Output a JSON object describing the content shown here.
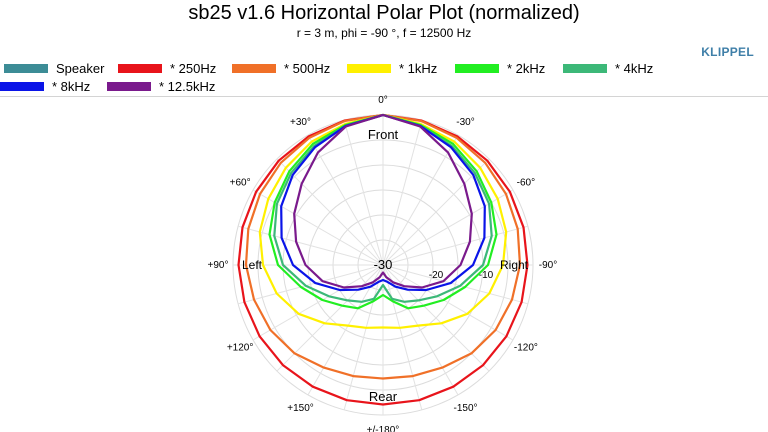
{
  "header": {
    "title": "sb25 v1.6 Horizontal Polar Plot (normalized)",
    "subtitle": "r = 3 m, phi = -90 °, f = 12500 Hz",
    "brand": "KLIPPEL"
  },
  "chart_data": {
    "type": "polar",
    "title": "sb25 v1.6 Horizontal Polar Plot (normalized)",
    "subtitle": "r = 3 m, phi = -90 °, f = 12500 Hz",
    "radial_range_db": [
      -30,
      0
    ],
    "radial_tick_labels": [
      "-30",
      "-20",
      "-10"
    ],
    "angle_tick_labels": [
      {
        "angle": 0,
        "label": "0°"
      },
      {
        "angle": 30,
        "label": "-30°"
      },
      {
        "angle": 60,
        "label": "-60°"
      },
      {
        "angle": 90,
        "label": "-90°"
      },
      {
        "angle": 120,
        "label": "-120°"
      },
      {
        "angle": 150,
        "label": "-150°"
      },
      {
        "angle": 180,
        "label": "+/-180°"
      },
      {
        "angle": 210,
        "label": "+150°"
      },
      {
        "angle": 240,
        "label": "+120°"
      },
      {
        "angle": 270,
        "label": "+90°"
      },
      {
        "angle": 300,
        "label": "+60°"
      },
      {
        "angle": 330,
        "label": "+30°"
      }
    ],
    "region_labels": {
      "front": "Front",
      "rear": "Rear",
      "left": "Left",
      "right": "Right"
    },
    "grid": true,
    "legend_position": "top",
    "angles_deg": [
      0,
      15,
      30,
      45,
      60,
      75,
      90,
      105,
      120,
      135,
      150,
      165,
      180
    ],
    "series": [
      {
        "name": "Speaker",
        "color": "#3c8c96",
        "in_plot": false,
        "values_db": []
      },
      {
        "name": "* 250Hz",
        "color": "#e8141b",
        "values_db": [
          0,
          -0.1,
          -0.3,
          -0.5,
          -0.7,
          -0.9,
          -1.1,
          -1.3,
          -1.5,
          -1.7,
          -1.9,
          -2.0,
          -2.1
        ]
      },
      {
        "name": "* 500Hz",
        "color": "#f07028",
        "values_db": [
          0,
          -0.2,
          -0.6,
          -1.1,
          -1.6,
          -2.1,
          -2.6,
          -3.3,
          -4.0,
          -5.0,
          -6.3,
          -7.0,
          -7.3
        ]
      },
      {
        "name": "* 1kHz",
        "color": "#fff000",
        "values_db": [
          0,
          -0.8,
          -1.5,
          -2.5,
          -3.5,
          -4.5,
          -6.0,
          -8.0,
          -10.5,
          -13.5,
          -16.0,
          -17.0,
          -17.5
        ]
      },
      {
        "name": "* 2kHz",
        "color": "#22ee22",
        "values_db": [
          0,
          -1.0,
          -2.0,
          -3.5,
          -5.0,
          -6.5,
          -9.0,
          -13.0,
          -16.0,
          -18.5,
          -20.0,
          -22.5,
          -24.0
        ]
      },
      {
        "name": "* 4kHz",
        "color": "#3cb878",
        "values_db": [
          0,
          -1.2,
          -2.5,
          -4.0,
          -5.5,
          -7.5,
          -10.0,
          -14.0,
          -17.5,
          -20.0,
          -21.5,
          -23.0,
          -26.0
        ]
      },
      {
        "name": "* 8kHz",
        "color": "#0a14e8",
        "values_db": [
          0,
          -1.2,
          -2.8,
          -4.5,
          -6.5,
          -9.0,
          -12.0,
          -16.0,
          -20.0,
          -23.0,
          -25.0,
          -26.5,
          -27.0
        ]
      },
      {
        "name": "* 12.5kHz",
        "color": "#7a1a8c",
        "values_db": [
          0,
          -1.3,
          -4.0,
          -7.0,
          -9.5,
          -12.0,
          -14.5,
          -17.5,
          -21.0,
          -24.0,
          -26.0,
          -27.5,
          -28.5
        ]
      }
    ]
  },
  "legend": {
    "items": [
      {
        "label": "Speaker",
        "color": "#3c8c96"
      },
      {
        "label": "* 250Hz",
        "color": "#e8141b"
      },
      {
        "label": "* 500Hz",
        "color": "#f07028"
      },
      {
        "label": "* 1kHz",
        "color": "#fff000"
      },
      {
        "label": "* 2kHz",
        "color": "#22ee22"
      },
      {
        "label": "* 4kHz",
        "color": "#3cb878"
      },
      {
        "label": "* 8kHz",
        "color": "#0a14e8"
      },
      {
        "label": "* 12.5kHz",
        "color": "#7a1a8c"
      }
    ]
  }
}
